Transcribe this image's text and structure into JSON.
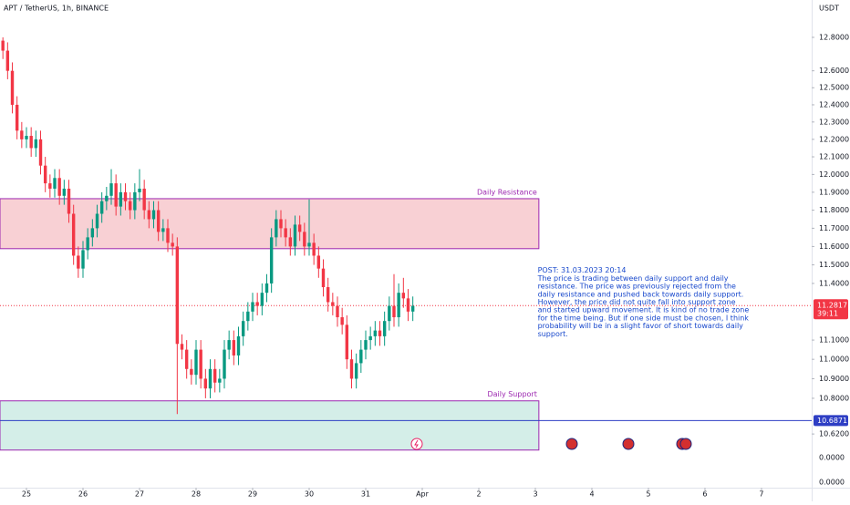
{
  "chart_data": {
    "type": "candlestick",
    "title": "APT / TetherUS, 1h, BINANCE",
    "currency": "USDT",
    "log_scale": true,
    "grid": false,
    "up_color": "#089981",
    "down_color": "#f23645",
    "xlim": [
      -11.23,
      333.3
    ],
    "xticks": [
      {
        "value": 0,
        "label": "25"
      },
      {
        "value": 24,
        "label": "26"
      },
      {
        "value": 48,
        "label": "27"
      },
      {
        "value": 72,
        "label": "28"
      },
      {
        "value": 96,
        "label": "29"
      },
      {
        "value": 120,
        "label": "30"
      },
      {
        "value": 144,
        "label": "31"
      },
      {
        "value": 168,
        "label": "Apr"
      },
      {
        "value": 192,
        "label": "2"
      },
      {
        "value": 216,
        "label": "3"
      },
      {
        "value": 240,
        "label": "4"
      },
      {
        "value": 264,
        "label": "5"
      },
      {
        "value": 288,
        "label": "6"
      },
      {
        "value": 312,
        "label": "7"
      }
    ],
    "ylim": [
      10.355,
      13.027
    ],
    "yticks": [
      {
        "value": 12.8,
        "label": "12.8000"
      },
      {
        "value": 12.6,
        "label": "12.6000"
      },
      {
        "value": 12.5,
        "label": "12.5000"
      },
      {
        "value": 12.4,
        "label": "12.4000"
      },
      {
        "value": 12.3,
        "label": "12.3000"
      },
      {
        "value": 12.2,
        "label": "12.2000"
      },
      {
        "value": 12.1,
        "label": "12.1000"
      },
      {
        "value": 12.0,
        "label": "12.0000"
      },
      {
        "value": 11.9,
        "label": "11.9000"
      },
      {
        "value": 11.8,
        "label": "11.8000"
      },
      {
        "value": 11.7,
        "label": "11.7000"
      },
      {
        "value": 11.6,
        "label": "11.6000"
      },
      {
        "value": 11.5,
        "label": "11.5000"
      },
      {
        "value": 11.4,
        "label": "11.4000"
      },
      {
        "value": 11.1,
        "label": "11.1000"
      },
      {
        "value": 11.0,
        "label": "11.0000"
      },
      {
        "value": 10.9,
        "label": "10.9000"
      },
      {
        "value": 10.8,
        "label": "10.8000"
      },
      {
        "value": 10.62,
        "label": "10.6200"
      }
    ],
    "extra_axis_labels": [
      "0.0000",
      "0.0000"
    ],
    "x": [
      -10,
      -8,
      -6,
      -4,
      -2,
      0,
      2,
      4,
      6,
      8,
      10,
      12,
      14,
      16,
      18,
      20,
      22,
      24,
      26,
      28,
      30,
      32,
      34,
      36,
      38,
      40,
      42,
      44,
      46,
      48,
      50,
      52,
      54,
      56,
      58,
      60,
      62,
      64,
      66,
      68,
      70,
      72,
      74,
      76,
      78,
      80,
      82,
      84,
      86,
      88,
      90,
      92,
      94,
      96,
      98,
      100,
      102,
      104,
      106,
      108,
      110,
      112,
      114,
      116,
      118,
      120,
      122,
      124,
      126,
      128,
      130,
      132,
      134,
      136,
      138,
      140,
      142,
      144,
      146,
      148,
      150,
      152,
      154,
      156,
      158,
      160,
      162,
      164
    ],
    "open": [
      12.78,
      12.72,
      12.6,
      12.4,
      12.25,
      12.2,
      12.22,
      12.15,
      12.2,
      12.05,
      11.95,
      11.92,
      11.98,
      11.88,
      11.92,
      11.78,
      11.55,
      11.48,
      11.58,
      11.65,
      11.7,
      11.78,
      11.85,
      11.88,
      11.95,
      11.82,
      11.9,
      11.85,
      11.8,
      11.9,
      11.92,
      11.8,
      11.75,
      11.8,
      11.68,
      11.7,
      11.62,
      11.6,
      11.08,
      11.05,
      10.95,
      10.92,
      11.05,
      10.9,
      10.85,
      10.95,
      10.88,
      10.9,
      11.05,
      11.1,
      11.02,
      11.12,
      11.2,
      11.25,
      11.3,
      11.28,
      11.35,
      11.4,
      11.65,
      11.75,
      11.7,
      11.65,
      11.6,
      11.72,
      11.68,
      11.6,
      11.62,
      11.55,
      11.48,
      11.38,
      11.3,
      11.28,
      11.22,
      11.18,
      11.0,
      10.9,
      10.98,
      11.05,
      11.1,
      11.12,
      11.15,
      11.12,
      11.2,
      11.28,
      11.22,
      11.35,
      11.32,
      11.25
    ],
    "high": [
      12.8,
      12.77,
      12.65,
      12.45,
      12.3,
      12.27,
      12.27,
      12.25,
      12.25,
      12.1,
      12.0,
      12.03,
      12.03,
      11.97,
      11.97,
      11.83,
      11.6,
      11.63,
      11.7,
      11.75,
      11.83,
      11.9,
      11.93,
      12.03,
      12.0,
      11.95,
      11.95,
      11.9,
      11.95,
      12.03,
      11.97,
      11.85,
      11.85,
      11.85,
      11.75,
      11.75,
      11.67,
      11.65,
      11.13,
      11.1,
      11.0,
      11.1,
      11.1,
      10.95,
      11.0,
      11.0,
      10.95,
      11.1,
      11.15,
      11.15,
      11.17,
      11.25,
      11.3,
      11.35,
      11.35,
      11.4,
      11.45,
      11.7,
      11.8,
      11.8,
      11.75,
      11.7,
      11.77,
      11.77,
      11.73,
      11.86,
      11.67,
      11.6,
      11.53,
      11.43,
      11.35,
      11.33,
      11.27,
      11.23,
      11.05,
      11.03,
      11.1,
      11.15,
      11.17,
      11.2,
      11.2,
      11.25,
      11.33,
      11.45,
      11.4,
      11.43,
      11.37,
      11.33
    ],
    "low": [
      12.67,
      12.55,
      12.35,
      12.2,
      12.15,
      12.15,
      12.1,
      12.1,
      12.0,
      11.9,
      11.87,
      11.87,
      11.83,
      11.83,
      11.73,
      11.5,
      11.43,
      11.43,
      11.53,
      11.6,
      11.65,
      11.73,
      11.8,
      11.83,
      11.77,
      11.77,
      11.8,
      11.75,
      11.75,
      11.85,
      11.75,
      11.7,
      11.7,
      11.63,
      11.63,
      11.57,
      11.55,
      10.72,
      11.0,
      10.9,
      10.87,
      10.87,
      10.85,
      10.8,
      10.8,
      10.83,
      10.83,
      10.85,
      11.0,
      10.97,
      10.97,
      11.07,
      11.15,
      11.2,
      11.23,
      11.23,
      11.3,
      11.35,
      11.6,
      11.65,
      11.6,
      11.55,
      11.55,
      11.63,
      11.55,
      11.55,
      11.5,
      11.43,
      11.33,
      11.25,
      11.23,
      11.17,
      11.13,
      10.95,
      10.85,
      10.85,
      10.93,
      11.0,
      11.05,
      11.07,
      11.07,
      11.07,
      11.15,
      11.17,
      11.17,
      11.27,
      11.2,
      11.2
    ],
    "close": [
      12.72,
      12.6,
      12.4,
      12.25,
      12.2,
      12.22,
      12.15,
      12.2,
      12.05,
      11.95,
      11.92,
      11.98,
      11.88,
      11.92,
      11.78,
      11.55,
      11.48,
      11.58,
      11.65,
      11.7,
      11.78,
      11.85,
      11.88,
      11.95,
      11.82,
      11.9,
      11.85,
      11.8,
      11.9,
      11.92,
      11.8,
      11.75,
      11.8,
      11.68,
      11.7,
      11.62,
      11.6,
      11.08,
      11.05,
      10.95,
      10.92,
      11.05,
      10.9,
      10.85,
      10.95,
      10.88,
      10.9,
      11.05,
      11.1,
      11.02,
      11.12,
      11.2,
      11.25,
      11.3,
      11.28,
      11.35,
      11.4,
      11.65,
      11.75,
      11.7,
      11.65,
      11.6,
      11.72,
      11.68,
      11.6,
      11.62,
      11.55,
      11.48,
      11.38,
      11.3,
      11.28,
      11.22,
      11.18,
      11.0,
      10.9,
      10.98,
      11.05,
      11.1,
      11.12,
      11.15,
      11.12,
      11.2,
      11.28,
      11.22,
      11.35,
      11.32,
      11.25,
      11.28
    ],
    "zones": [
      {
        "label": "Daily Resistance",
        "range": [
          11.588,
          11.864
        ],
        "x_end": 217.5,
        "fill": "#f8d0d4",
        "stroke": "#9c27b0",
        "label_color": "#9c27b0"
      },
      {
        "label": "Daily Support",
        "range": [
          10.54,
          10.787
        ],
        "x_end": 217.5,
        "fill": "#d4eee8",
        "stroke": "#9c27b0",
        "label_color": "#9c27b0"
      }
    ],
    "hline": {
      "value": 10.6871,
      "label": "10.6871",
      "color": "#2e3ec4"
    },
    "last_price": {
      "value": 11.2817,
      "label": "11.2817",
      "countdown": "39:11",
      "color": "#f23645"
    },
    "annotation": {
      "color": "#1848cc",
      "x": 217,
      "value": 11.47,
      "lines": [
        "POST: 31.03.2023 20:14",
        "The price is trading between daily support and daily",
        "resistance. The price was previously rejected from the",
        "daily resistance and pushed back towards daily support.",
        "However, the price did not quite fall into support zone",
        "and started upward movement. It is kind of no trade zone",
        "for the time being. But if one side must be chosen, I think",
        "probability will be in a slight favor of short towards daily",
        "support."
      ]
    }
  }
}
